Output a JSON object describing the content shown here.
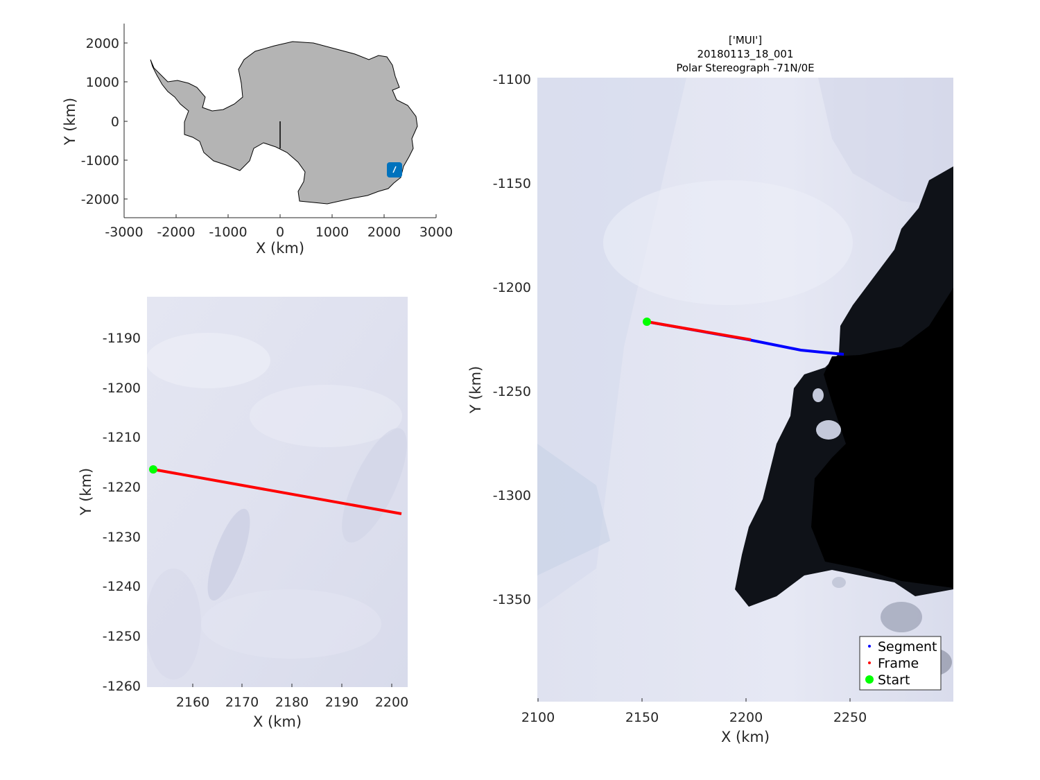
{
  "overview_map": {
    "xlabel": "X (km)",
    "ylabel": "Y (km)",
    "xticks": [
      "-3000",
      "-2000",
      "-1000",
      "0",
      "1000",
      "2000",
      "3000"
    ],
    "yticks": [
      "2000",
      "1000",
      "0",
      "-1000",
      "-2000"
    ],
    "land_color": "#b4b4b4",
    "marker_color": "#0072bd"
  },
  "zoom_map": {
    "xlabel": "X (km)",
    "ylabel": "Y (km)",
    "xticks": [
      "2160",
      "2170",
      "2180",
      "2190",
      "2200"
    ],
    "yticks": [
      "-1190",
      "-1200",
      "-1210",
      "-1220",
      "-1230",
      "-1240",
      "-1250",
      "-1260"
    ],
    "frame_color": "#ff0000",
    "start_color": "#00ff00"
  },
  "main_map": {
    "title_lines": [
      "['MUI']",
      "20180113_18_001",
      "Polar Stereograph -71N/0E"
    ],
    "xlabel": "X (km)",
    "ylabel": "Y (km)",
    "xticks": [
      "2100",
      "2150",
      "2200",
      "2250"
    ],
    "yticks": [
      "-1100",
      "-1150",
      "-1200",
      "-1250",
      "-1300",
      "-1350"
    ],
    "legend": {
      "segment_label": "Segment",
      "frame_label": "Frame",
      "start_label": "Start",
      "segment_color": "#0000ff",
      "frame_color": "#ff0000",
      "start_color": "#00ff00"
    }
  }
}
